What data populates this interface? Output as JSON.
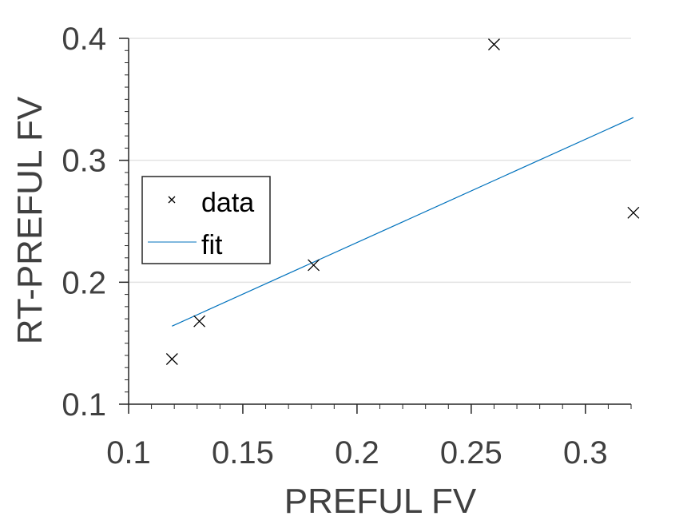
{
  "chart_data": {
    "type": "scatter",
    "xlabel": "PREFUL FV",
    "ylabel": "RT-PREFUL FV",
    "xlim": [
      0.1,
      0.32
    ],
    "ylim": [
      0.1,
      0.4
    ],
    "xticks": [
      0.1,
      0.15,
      0.2,
      0.25,
      0.3
    ],
    "xtick_labels": [
      "0.1",
      "0.15",
      "0.2",
      "0.25",
      "0.3"
    ],
    "yticks": [
      0.1,
      0.2,
      0.3,
      0.4
    ],
    "ytick_labels": [
      "0.1",
      "0.2",
      "0.3",
      "0.4"
    ],
    "grid": "horizontal",
    "legend_position": "left",
    "series": [
      {
        "name": "data",
        "type": "scatter",
        "marker": "x",
        "color": "#000000",
        "x": [
          0.119,
          0.131,
          0.181,
          0.26,
          0.321
        ],
        "y": [
          0.137,
          0.168,
          0.214,
          0.395,
          0.257
        ]
      },
      {
        "name": "fit",
        "type": "line",
        "color": "#0072bd",
        "x": [
          0.119,
          0.321
        ],
        "y": [
          0.164,
          0.335
        ]
      }
    ]
  }
}
